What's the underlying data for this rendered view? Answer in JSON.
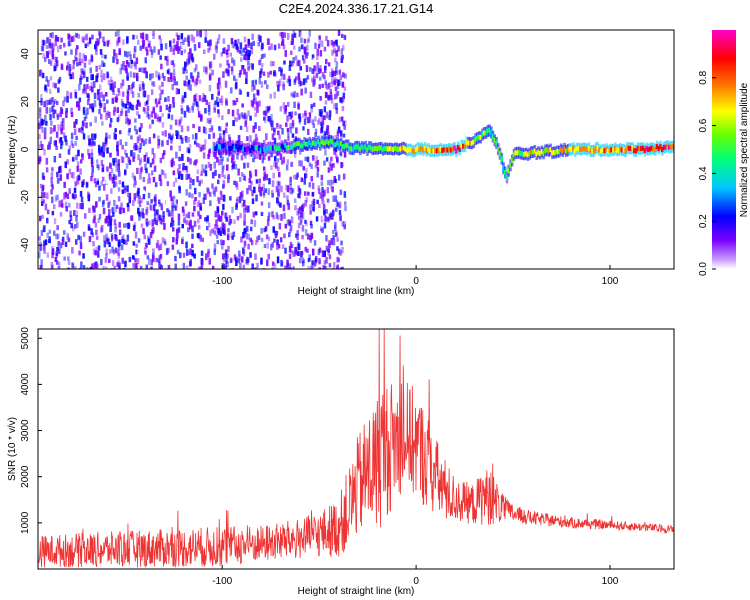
{
  "title": "C2E4.2024.336.17.21.G14",
  "chart_data": [
    {
      "type": "heatmap",
      "xlabel": "Height of straight line (km)",
      "ylabel": "Frequency (Hz)",
      "xlim": [
        -195,
        133
      ],
      "ylim": [
        -50,
        50
      ],
      "x_ticks": [
        -100,
        0,
        100
      ],
      "y_ticks": [
        40,
        20,
        0,
        -20,
        -40
      ],
      "colorbar": {
        "label": "Normalized spectral amplitude",
        "range": [
          0,
          1
        ],
        "ticks": [
          0.0,
          0.2,
          0.4,
          0.6,
          0.8
        ],
        "colors": [
          "#ffffff",
          "#7a00ff",
          "#0000ff",
          "#00c8ff",
          "#00ff7a",
          "#64ff00",
          "#ffff00",
          "#ff8000",
          "#ff0000",
          "#ff00c8"
        ]
      },
      "ridge": {
        "description_points_x": [
          -100,
          -80,
          -60,
          -45,
          -35,
          -20,
          0,
          20,
          30,
          38,
          42,
          46,
          50,
          80,
          110,
          133
        ],
        "frequency": [
          1,
          0,
          2,
          3,
          1,
          0,
          0,
          0,
          4,
          8,
          0,
          -12,
          -2,
          0,
          0,
          1
        ],
        "amplitude": [
          0.25,
          0.3,
          0.45,
          0.5,
          0.45,
          0.55,
          0.75,
          0.85,
          0.6,
          0.45,
          0.5,
          0.4,
          0.6,
          0.7,
          0.8,
          0.9
        ]
      },
      "noise_region": [
        -195,
        -45
      ]
    },
    {
      "type": "line",
      "xlabel": "Height of straight line (km)",
      "ylabel": "SNR (10 * v/v)",
      "xlim": [
        -195,
        133
      ],
      "ylim": [
        0,
        5200
      ],
      "x_ticks": [
        -100,
        0,
        100
      ],
      "y_ticks": [
        1000,
        2000,
        3000,
        4000,
        5000
      ],
      "line_color": "#ee3333",
      "envelope": {
        "x": [
          -195,
          -150,
          -100,
          -80,
          -60,
          -50,
          -40,
          -35,
          -30,
          -25,
          -20,
          -18,
          -15,
          -10,
          -5,
          0,
          5,
          10,
          15,
          20,
          25,
          30,
          35,
          40,
          45,
          50,
          60,
          80,
          100,
          120,
          133
        ],
        "mean": [
          380,
          430,
          480,
          550,
          650,
          750,
          900,
          1300,
          1800,
          2100,
          2300,
          2500,
          2600,
          2800,
          2900,
          2700,
          2400,
          2000,
          1700,
          1500,
          1450,
          1400,
          1600,
          1500,
          1300,
          1200,
          1100,
          1000,
          950,
          900,
          850
        ],
        "spread": [
          350,
          400,
          450,
          400,
          450,
          500,
          650,
          900,
          1100,
          1300,
          1500,
          1600,
          1500,
          1300,
          1200,
          1200,
          1100,
          900,
          700,
          500,
          450,
          450,
          650,
          550,
          300,
          200,
          150,
          120,
          100,
          90,
          90
        ],
        "peak": {
          "x": -19,
          "y": 5200
        }
      }
    }
  ]
}
